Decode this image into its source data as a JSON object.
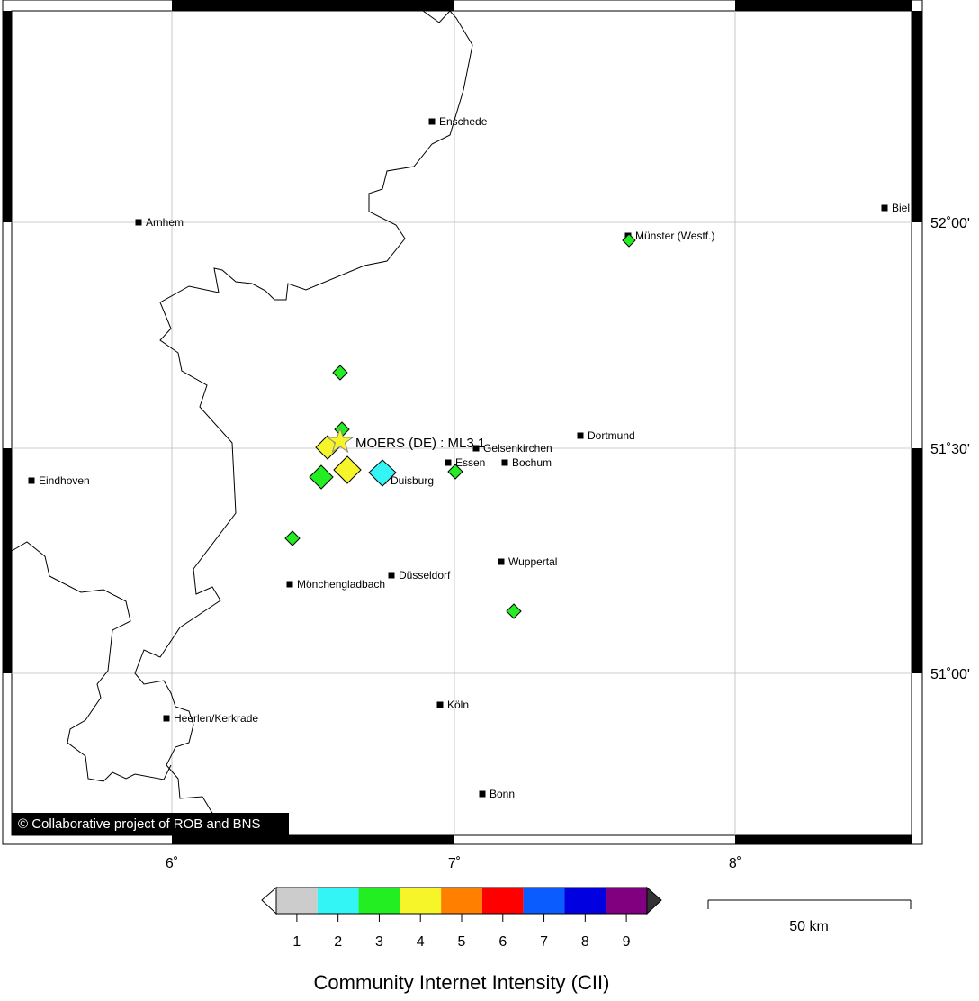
{
  "map": {
    "cities": [
      "Enschede",
      "Arnhem",
      "Münster (Westf.)",
      "Biel",
      "Dortmund",
      "Gelsenkirchen",
      "Essen",
      "Bochum",
      "Duisburg",
      "Eindhoven",
      "Düsseldorf",
      "Wuppertal",
      "Mönchengladbach",
      "Köln",
      "Heerlen/Kerkrade",
      "Bonn"
    ],
    "epicenter": "MOERS (DE) : ML3.1",
    "longitude_labels": [
      "6˚",
      "7˚",
      "8˚"
    ],
    "latitude_labels": [
      "52˚00'",
      "51˚30'",
      "51˚00'"
    ],
    "copyright": "© Collaborative project of ROB and BNS",
    "colorbar": {
      "ticks": [
        "1",
        "2",
        "3",
        "4",
        "5",
        "6",
        "7",
        "8",
        "9"
      ],
      "title": "Community Internet Intensity (CII)"
    },
    "scale_bar": "50 km"
  }
}
